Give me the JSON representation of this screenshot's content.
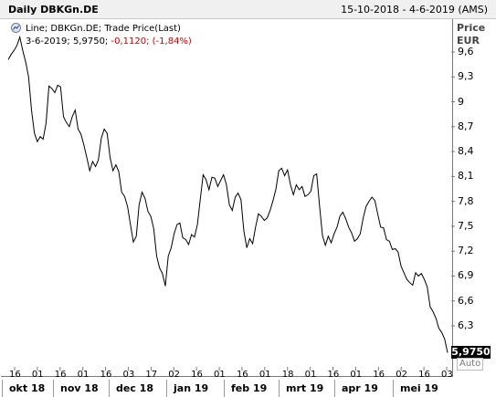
{
  "header": {
    "title": "Daily DBKGn.DE",
    "date_range": "15-10-2018 - 4-6-2019 (AMS)"
  },
  "legend": {
    "series_text": "Line; DBKGn.DE; Trade Price(Last)",
    "date_value": "3-6-2019; 5,9750;",
    "change": "-0,1120;",
    "change_pct": "(-1,84%)",
    "icon": "line-chart-icon"
  },
  "axis": {
    "price_label": "Price",
    "currency_label": "EUR",
    "auto_label": "Auto",
    "last_value_label": "5,9750"
  },
  "colors": {
    "line": "#000000",
    "negative": "#cc0000",
    "badge_bg": "#000000"
  },
  "chart_data": {
    "type": "line",
    "title": "Daily DBKGn.DE",
    "xlabel": "",
    "ylabel": "Price EUR",
    "ylim": [
      5.85,
      9.85
    ],
    "y_ticks": [
      "9,6",
      "9,3",
      "9",
      "8,7",
      "8,4",
      "8,1",
      "7,8",
      "7,5",
      "7,2",
      "6,9",
      "6,6",
      "6,3"
    ],
    "x_day_ticks": [
      "16",
      "01",
      "16",
      "01",
      "16",
      "03",
      "17",
      "02",
      "16",
      "01",
      "16",
      "01",
      "18",
      "01",
      "16",
      "01",
      "16",
      "02",
      "16",
      "03"
    ],
    "x_month_labels": [
      "okt 18",
      "nov 18",
      "dec 18",
      "jan 19",
      "feb 19",
      "mrt 19",
      "apr 19",
      "mei 19"
    ],
    "series": [
      {
        "values": [
          9.51,
          9.57,
          9.62,
          9.68,
          9.78,
          9.62,
          9.48,
          9.3,
          8.9,
          8.62,
          8.52,
          8.58,
          8.55,
          8.74,
          9.19,
          9.16,
          9.11,
          9.2,
          9.18,
          8.82,
          8.75,
          8.7,
          8.82,
          8.9,
          8.67,
          8.61,
          8.48,
          8.33,
          8.17,
          8.28,
          8.22,
          8.3,
          8.56,
          8.67,
          8.62,
          8.33,
          8.17,
          8.24,
          8.16,
          7.91,
          7.86,
          7.74,
          7.52,
          7.31,
          7.38,
          7.76,
          7.91,
          7.84,
          7.68,
          7.62,
          7.47,
          7.14,
          7.0,
          6.93,
          6.78,
          7.14,
          7.24,
          7.41,
          7.52,
          7.54,
          7.36,
          7.34,
          7.28,
          7.4,
          7.37,
          7.52,
          7.82,
          8.12,
          8.06,
          7.94,
          8.09,
          8.08,
          7.98,
          8.05,
          8.12,
          8.0,
          7.76,
          7.69,
          7.85,
          7.9,
          7.82,
          7.44,
          7.24,
          7.35,
          7.29,
          7.49,
          7.65,
          7.62,
          7.57,
          7.6,
          7.69,
          7.81,
          7.95,
          8.17,
          8.2,
          8.11,
          8.18,
          8.0,
          7.88,
          8.0,
          7.94,
          7.98,
          7.86,
          7.88,
          7.92,
          8.11,
          8.13,
          7.75,
          7.39,
          7.27,
          7.38,
          7.3,
          7.41,
          7.49,
          7.62,
          7.67,
          7.59,
          7.49,
          7.42,
          7.32,
          7.35,
          7.41,
          7.6,
          7.74,
          7.8,
          7.85,
          7.81,
          7.65,
          7.49,
          7.48,
          7.34,
          7.32,
          7.22,
          7.23,
          7.19,
          7.02,
          6.94,
          6.86,
          6.82,
          6.79,
          6.94,
          6.9,
          6.93,
          6.86,
          6.77,
          6.53,
          6.47,
          6.39,
          6.27,
          6.22,
          6.14,
          5.975
        ]
      }
    ]
  }
}
